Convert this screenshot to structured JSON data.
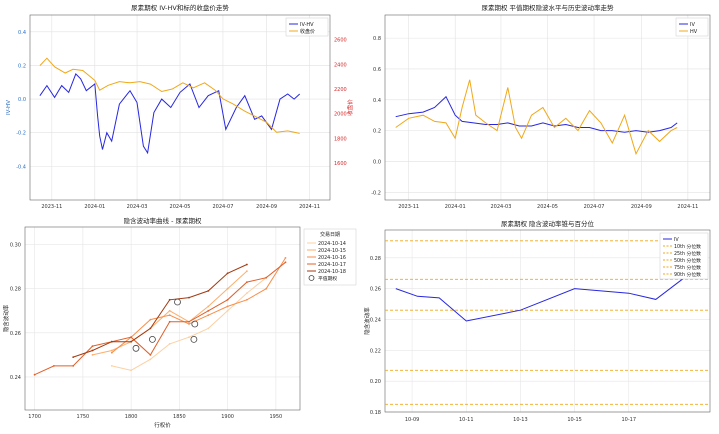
{
  "chart_data": [
    {
      "type": "line",
      "title": "尿素期权 IV-HV和标的收盘价走势",
      "xlabel": "",
      "ylabel": "IV-HV",
      "y2label": "收盘价",
      "xlim": [
        "2023-10-01",
        "2024-11-30"
      ],
      "ylim": [
        -0.6,
        0.5
      ],
      "y2lim": [
        1300,
        2800
      ],
      "xticks": [
        "2023-11",
        "2024-01",
        "2024-03",
        "2024-05",
        "2024-07",
        "2024-09",
        "2024-11"
      ],
      "yticks": [
        "-0.4",
        "-0.2",
        "0.0",
        "0.2",
        "0.4"
      ],
      "y2ticks": [
        "1600",
        "1800",
        "2000",
        "2200",
        "2400",
        "2600"
      ],
      "legend_position": "top-right",
      "grid": true,
      "series": [
        {
          "name": "IV-HV",
          "color": "#2727e0",
          "axis": "left",
          "x": [
            "2023-10-15",
            "2023-10-25",
            "2023-11-05",
            "2023-11-15",
            "2023-11-25",
            "2023-12-05",
            "2023-12-12",
            "2023-12-20",
            "2024-01-01",
            "2024-01-05",
            "2024-01-08",
            "2024-01-12",
            "2024-01-18",
            "2024-01-25",
            "2024-02-05",
            "2024-02-20",
            "2024-03-01",
            "2024-03-10",
            "2024-03-16",
            "2024-03-25",
            "2024-04-05",
            "2024-04-18",
            "2024-05-01",
            "2024-05-15",
            "2024-05-28",
            "2024-06-10",
            "2024-06-25",
            "2024-07-05",
            "2024-07-20",
            "2024-08-01",
            "2024-08-15",
            "2024-08-25",
            "2024-09-08",
            "2024-09-20",
            "2024-10-01",
            "2024-10-10",
            "2024-10-18"
          ],
          "y": [
            0.02,
            0.08,
            0.01,
            0.08,
            0.04,
            0.15,
            0.12,
            0.05,
            0.09,
            -0.1,
            -0.22,
            -0.3,
            -0.2,
            -0.25,
            -0.03,
            0.05,
            -0.02,
            -0.28,
            -0.32,
            -0.08,
            0.0,
            -0.05,
            0.04,
            0.09,
            -0.05,
            0.02,
            0.05,
            -0.18,
            -0.05,
            0.02,
            -0.12,
            -0.1,
            -0.18,
            0.0,
            0.03,
            0.0,
            0.03
          ]
        },
        {
          "name": "收盘价",
          "color": "#f0a818",
          "axis": "right",
          "x": [
            "2023-10-15",
            "2023-10-25",
            "2023-11-05",
            "2023-11-20",
            "2023-12-01",
            "2023-12-15",
            "2024-01-01",
            "2024-01-08",
            "2024-01-20",
            "2024-02-05",
            "2024-02-20",
            "2024-03-05",
            "2024-03-20",
            "2024-04-05",
            "2024-04-20",
            "2024-05-05",
            "2024-05-20",
            "2024-06-05",
            "2024-06-20",
            "2024-07-01",
            "2024-07-15",
            "2024-08-01",
            "2024-08-15",
            "2024-09-01",
            "2024-09-15",
            "2024-10-01",
            "2024-10-18"
          ],
          "y": [
            2390,
            2450,
            2380,
            2330,
            2360,
            2350,
            2270,
            2190,
            2230,
            2260,
            2250,
            2260,
            2240,
            2180,
            2200,
            2250,
            2210,
            2250,
            2190,
            2120,
            2080,
            2020,
            1980,
            1930,
            1850,
            1860,
            1840
          ]
        }
      ]
    },
    {
      "type": "line",
      "title": "尿素期权 平值期权隐波水平与历史波动率走势",
      "xlabel": "",
      "ylabel": "",
      "xlim": [
        "2023-10-01",
        "2024-11-30"
      ],
      "ylim": [
        -0.25,
        0.95
      ],
      "xticks": [
        "2023-11",
        "2024-01",
        "2024-03",
        "2024-05",
        "2024-07",
        "2024-09",
        "2024-11"
      ],
      "yticks": [
        "-0.2",
        "0.0",
        "0.2",
        "0.4",
        "0.6",
        "0.8"
      ],
      "legend_position": "top-right",
      "grid": true,
      "series": [
        {
          "name": "IV",
          "color": "#2727e0",
          "x": [
            "2023-10-15",
            "2023-11-01",
            "2023-11-20",
            "2023-12-05",
            "2023-12-20",
            "2024-01-01",
            "2024-01-10",
            "2024-01-25",
            "2024-02-10",
            "2024-02-25",
            "2024-03-10",
            "2024-03-25",
            "2024-04-10",
            "2024-04-25",
            "2024-05-10",
            "2024-05-25",
            "2024-06-10",
            "2024-06-25",
            "2024-07-10",
            "2024-07-25",
            "2024-08-10",
            "2024-08-25",
            "2024-09-10",
            "2024-09-25",
            "2024-10-10",
            "2024-10-18"
          ],
          "y": [
            0.29,
            0.31,
            0.32,
            0.35,
            0.42,
            0.3,
            0.26,
            0.25,
            0.24,
            0.24,
            0.25,
            0.23,
            0.23,
            0.25,
            0.23,
            0.24,
            0.22,
            0.22,
            0.2,
            0.2,
            0.19,
            0.2,
            0.19,
            0.2,
            0.22,
            0.25
          ]
        },
        {
          "name": "HV",
          "color": "#f0a818",
          "x": [
            "2023-10-15",
            "2023-11-01",
            "2023-11-20",
            "2023-12-05",
            "2023-12-20",
            "2024-01-01",
            "2024-01-10",
            "2024-01-20",
            "2024-01-28",
            "2024-02-10",
            "2024-02-25",
            "2024-03-10",
            "2024-03-20",
            "2024-03-28",
            "2024-04-10",
            "2024-04-25",
            "2024-05-10",
            "2024-05-25",
            "2024-06-10",
            "2024-06-25",
            "2024-07-10",
            "2024-07-25",
            "2024-08-10",
            "2024-08-25",
            "2024-09-10",
            "2024-09-25",
            "2024-10-10",
            "2024-10-18"
          ],
          "y": [
            0.22,
            0.28,
            0.3,
            0.26,
            0.25,
            0.15,
            0.35,
            0.53,
            0.3,
            0.25,
            0.2,
            0.48,
            0.22,
            0.15,
            0.3,
            0.35,
            0.22,
            0.28,
            0.2,
            0.33,
            0.25,
            0.12,
            0.3,
            0.05,
            0.2,
            0.13,
            0.2,
            0.22
          ]
        }
      ]
    },
    {
      "type": "line",
      "title": "隐含波动率曲线 - 尿素期权",
      "xlabel": "行权价",
      "ylabel": "隐含波动率",
      "xlim": [
        1690,
        1975
      ],
      "ylim": [
        0.225,
        0.308
      ],
      "xticks": [
        "1700",
        "1750",
        "1800",
        "1850",
        "1900",
        "1950"
      ],
      "yticks": [
        "0.24",
        "0.26",
        "0.28",
        "0.30"
      ],
      "legend_title": "交易日期",
      "legend_position": "top-right",
      "grid": true,
      "series": [
        {
          "name": "2024-10-14",
          "color": "#fdd0a2",
          "x": [
            1780,
            1800,
            1820,
            1840,
            1860,
            1880,
            1900,
            1920,
            1940
          ],
          "y": [
            0.245,
            0.243,
            0.248,
            0.255,
            0.258,
            0.262,
            0.27,
            0.278,
            0.285
          ]
        },
        {
          "name": "2024-10-15",
          "color": "#fdae6b",
          "x": [
            1760,
            1780,
            1800,
            1820,
            1840,
            1860,
            1880,
            1900,
            1920
          ],
          "y": [
            0.25,
            0.252,
            0.256,
            0.262,
            0.27,
            0.265,
            0.272,
            0.28,
            0.288
          ]
        },
        {
          "name": "2024-10-16",
          "color": "#f98e4a",
          "x": [
            1780,
            1800,
            1820,
            1840,
            1860,
            1880,
            1900,
            1920,
            1940,
            1960
          ],
          "y": [
            0.251,
            0.258,
            0.266,
            0.268,
            0.264,
            0.268,
            0.272,
            0.275,
            0.28,
            0.294
          ]
        },
        {
          "name": "2024-10-17",
          "color": "#e0602a",
          "x": [
            1700,
            1720,
            1740,
            1760,
            1780,
            1800,
            1820,
            1840,
            1860,
            1880,
            1900,
            1920,
            1940,
            1960
          ],
          "y": [
            0.241,
            0.245,
            0.245,
            0.254,
            0.256,
            0.258,
            0.25,
            0.265,
            0.265,
            0.27,
            0.275,
            0.283,
            0.285,
            0.292
          ]
        },
        {
          "name": "2024-10-18",
          "color": "#a33a10",
          "x": [
            1740,
            1760,
            1780,
            1800,
            1820,
            1840,
            1860,
            1880,
            1900,
            1920
          ],
          "y": [
            0.249,
            0.252,
            0.256,
            0.256,
            0.262,
            0.275,
            0.276,
            0.279,
            0.287,
            0.291
          ]
        }
      ],
      "atm_marker_name": "平值期权",
      "atm_points": {
        "x": [
          1805,
          1822,
          1848,
          1865,
          1866
        ],
        "y": [
          0.253,
          0.257,
          0.274,
          0.257,
          0.264
        ]
      }
    },
    {
      "type": "line",
      "title": "尿素期权 隐含波动率锥与百分位",
      "xlabel": "",
      "ylabel": "隐含波动率",
      "xlim": [
        -0.5,
        5.5
      ],
      "ylim": [
        0.18,
        0.298
      ],
      "xticks": [
        "10-09",
        "10-11",
        "10-13",
        "10-15",
        "10-17"
      ],
      "xtick_positions": [
        0,
        1,
        2,
        3,
        4
      ],
      "yticks": [
        "0.18",
        "0.20",
        "0.22",
        "0.24",
        "0.26",
        "0.28"
      ],
      "legend_position": "top-right",
      "grid": true,
      "series": [
        {
          "name": "IV",
          "color": "#2727e0",
          "x": [
            -0.3,
            0.1,
            0.5,
            1.0,
            2.0,
            3.0,
            4.0,
            4.5,
            5.1
          ],
          "y": [
            0.26,
            0.255,
            0.254,
            0.239,
            0.246,
            0.26,
            0.257,
            0.253,
            0.269
          ]
        }
      ],
      "percentile_lines": [
        {
          "name": "10th 分位数",
          "value": 0.185
        },
        {
          "name": "25th 分位数",
          "value": 0.207
        },
        {
          "name": "50th 分位数",
          "value": 0.246
        },
        {
          "name": "75th 分位数",
          "value": 0.266
        },
        {
          "name": "90th 分位数",
          "value": 0.291
        }
      ],
      "percentile_color": "#f0a818"
    }
  ]
}
